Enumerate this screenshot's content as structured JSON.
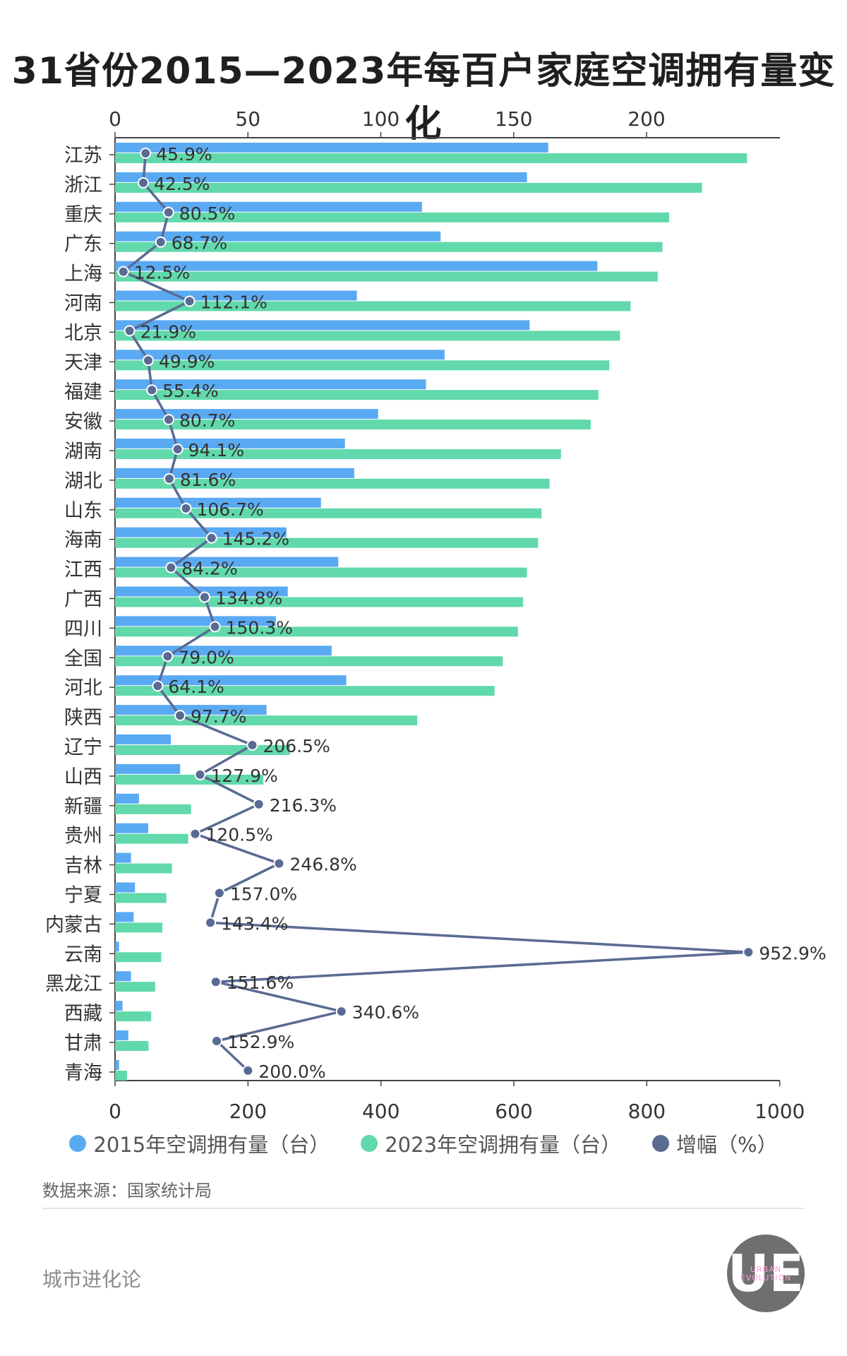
{
  "title": "31省份2015—2023年每百户家庭空调拥有量变化",
  "legend": {
    "a2015": "2015年空调拥有量（台）",
    "a2023": "2023年空调拥有量（台）",
    "growth": "增幅（%）"
  },
  "source": "数据来源：国家统计局",
  "brand": {
    "name": "城市进化论",
    "logo_text": "UE",
    "logo_sub": "URBAN EVOLUTION"
  },
  "colors": {
    "c2015": "#5aaaf3",
    "c2023": "#61d9ab",
    "growth": "#5a6b93"
  },
  "chart_data": {
    "type": "bar",
    "orientation": "horizontal",
    "top_axis": {
      "ticks": [
        0,
        50,
        100,
        150,
        200
      ],
      "range": [
        0,
        250
      ]
    },
    "bottom_axis": {
      "ticks": [
        0,
        200,
        400,
        600,
        800,
        1000
      ],
      "range": [
        0,
        1000
      ]
    },
    "categories": [
      "江苏",
      "浙江",
      "重庆",
      "广东",
      "上海",
      "河南",
      "北京",
      "天津",
      "福建",
      "安徽",
      "湖南",
      "湖北",
      "山东",
      "海南",
      "江西",
      "广西",
      "四川",
      "全国",
      "河北",
      "陕西",
      "辽宁",
      "山西",
      "新疆",
      "贵州",
      "吉林",
      "宁夏",
      "内蒙古",
      "云南",
      "黑龙江",
      "西藏",
      "甘肃",
      "青海"
    ],
    "series": [
      {
        "name": "2015年空调拥有量（台）",
        "axis": "top",
        "values": [
          163.0,
          155.0,
          115.5,
          122.5,
          181.5,
          91.0,
          156.0,
          124.0,
          117.0,
          99.0,
          86.5,
          90.0,
          77.5,
          64.5,
          84.0,
          65.0,
          60.5,
          81.5,
          87.0,
          57.0,
          21.0,
          24.5,
          9.0,
          12.5,
          6.0,
          7.5,
          7.0,
          1.5,
          6.0,
          2.8,
          5.0,
          1.5
        ]
      },
      {
        "name": "2023年空调拥有量（台）",
        "axis": "top",
        "values": [
          237.8,
          220.9,
          208.5,
          206.0,
          204.2,
          194.0,
          190.0,
          186.0,
          181.9,
          179.0,
          167.8,
          163.5,
          160.5,
          159.2,
          155.0,
          153.5,
          151.6,
          145.9,
          142.8,
          113.7,
          65.8,
          55.8,
          28.6,
          27.5,
          21.4,
          19.3,
          17.8,
          17.4,
          15.1,
          13.6,
          12.6,
          4.5
        ]
      },
      {
        "name": "增幅（%）",
        "axis": "bottom",
        "type": "line",
        "values": [
          45.9,
          42.5,
          80.5,
          68.7,
          12.5,
          112.1,
          21.9,
          49.9,
          55.4,
          80.7,
          94.1,
          81.6,
          106.7,
          145.2,
          84.2,
          134.8,
          150.3,
          79.0,
          64.1,
          97.7,
          206.5,
          127.9,
          216.3,
          120.5,
          246.8,
          157.0,
          143.4,
          952.9,
          151.6,
          340.6,
          152.9,
          200.0
        ],
        "labels": [
          "45.9%",
          "42.5%",
          "80.5%",
          "68.7%",
          "12.5%",
          "112.1%",
          "21.9%",
          "49.9%",
          "55.4%",
          "80.7%",
          "94.1%",
          "81.6%",
          "106.7%",
          "145.2%",
          "84.2%",
          "134.8%",
          "150.3%",
          "79.0%",
          "64.1%",
          "97.7%",
          "206.5%",
          "127.9%",
          "216.3%",
          "120.5%",
          "246.8%",
          "157.0%",
          "143.4%",
          "952.9%",
          "151.6%",
          "340.6%",
          "152.9%",
          "200.0%"
        ]
      }
    ],
    "legend_position": "bottom"
  }
}
